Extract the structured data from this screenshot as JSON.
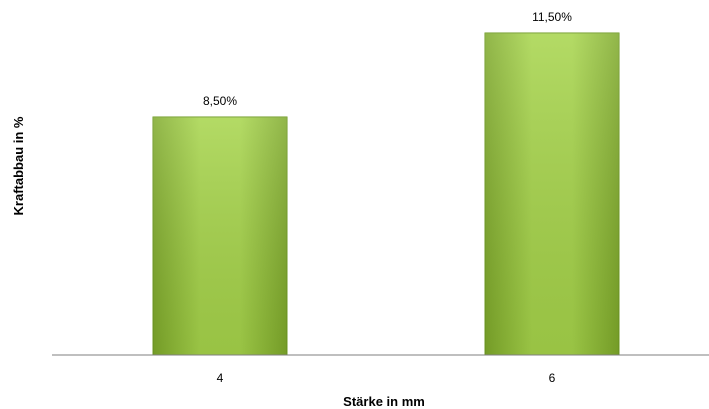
{
  "chart_data": {
    "type": "bar",
    "categories": [
      "4",
      "6"
    ],
    "values": [
      8.5,
      11.5
    ],
    "data_labels": [
      "8,50%",
      "11,50%"
    ],
    "title": "",
    "xlabel": "Stärke in mm",
    "ylabel": "Kraftabbau in %",
    "ylim": [
      0,
      12.5
    ],
    "grid": false,
    "legend": "none",
    "colors": {
      "bar_light": "#b4dc5a",
      "bar_mid": "#99cc3a",
      "bar_dark": "#6e9a22",
      "axis": "#7f7f7f"
    }
  }
}
